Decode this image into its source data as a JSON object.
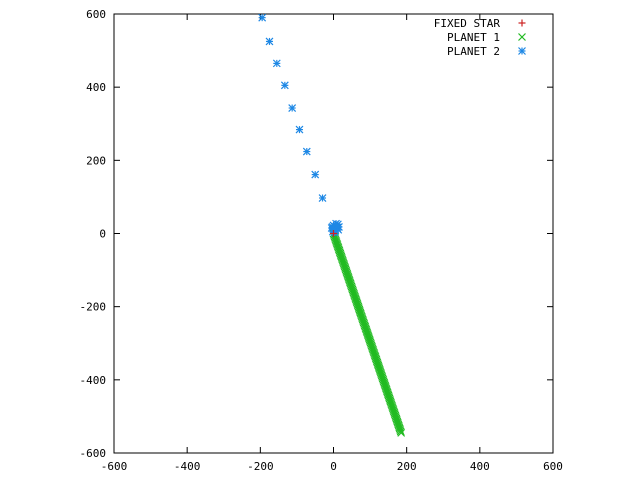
{
  "chart_data": {
    "type": "scatter",
    "title": "",
    "xlabel": "",
    "ylabel": "",
    "xlim": [
      -600,
      600
    ],
    "ylim": [
      -600,
      600
    ],
    "x_ticks": [
      -600,
      -400,
      -200,
      0,
      200,
      400,
      600
    ],
    "y_ticks": [
      -600,
      -400,
      -200,
      0,
      200,
      400,
      600
    ],
    "x_tick_labels": [
      "-600",
      "-400",
      "-200",
      "0",
      "200",
      "400",
      "600"
    ],
    "y_tick_labels": [
      "-600",
      "-400",
      "-200",
      "0",
      "200",
      "400",
      "600"
    ],
    "grid": false,
    "legend_position": "top-right",
    "series": [
      {
        "name": "FIXED STAR",
        "marker": "plus",
        "color": "#cc2222",
        "points": [
          [
            0,
            0
          ]
        ]
      },
      {
        "name": "PLANET 1",
        "marker": "cross",
        "color": "#22bb22",
        "segment": {
          "from": [
            0,
            0
          ],
          "to": [
            185,
            -545
          ],
          "count": 140
        }
      },
      {
        "name": "PLANET 2",
        "marker": "star",
        "color": "#1e88e5",
        "points": [
          [
            -195,
            590
          ],
          [
            -175,
            525
          ],
          [
            -155,
            465
          ],
          [
            -133,
            405
          ],
          [
            -113,
            343
          ],
          [
            -93,
            284
          ],
          [
            -73,
            224
          ],
          [
            -50,
            161
          ],
          [
            -30,
            97
          ],
          [
            -5,
            15
          ],
          [
            -3,
            18
          ],
          [
            0,
            22
          ],
          [
            2,
            12
          ],
          [
            5,
            8
          ],
          [
            8,
            20
          ],
          [
            10,
            15
          ],
          [
            12,
            25
          ],
          [
            13,
            10
          ],
          [
            15,
            18
          ],
          [
            7,
            27
          ],
          [
            -2,
            5
          ],
          [
            3,
            3
          ],
          [
            0,
            10
          ]
        ]
      }
    ]
  }
}
